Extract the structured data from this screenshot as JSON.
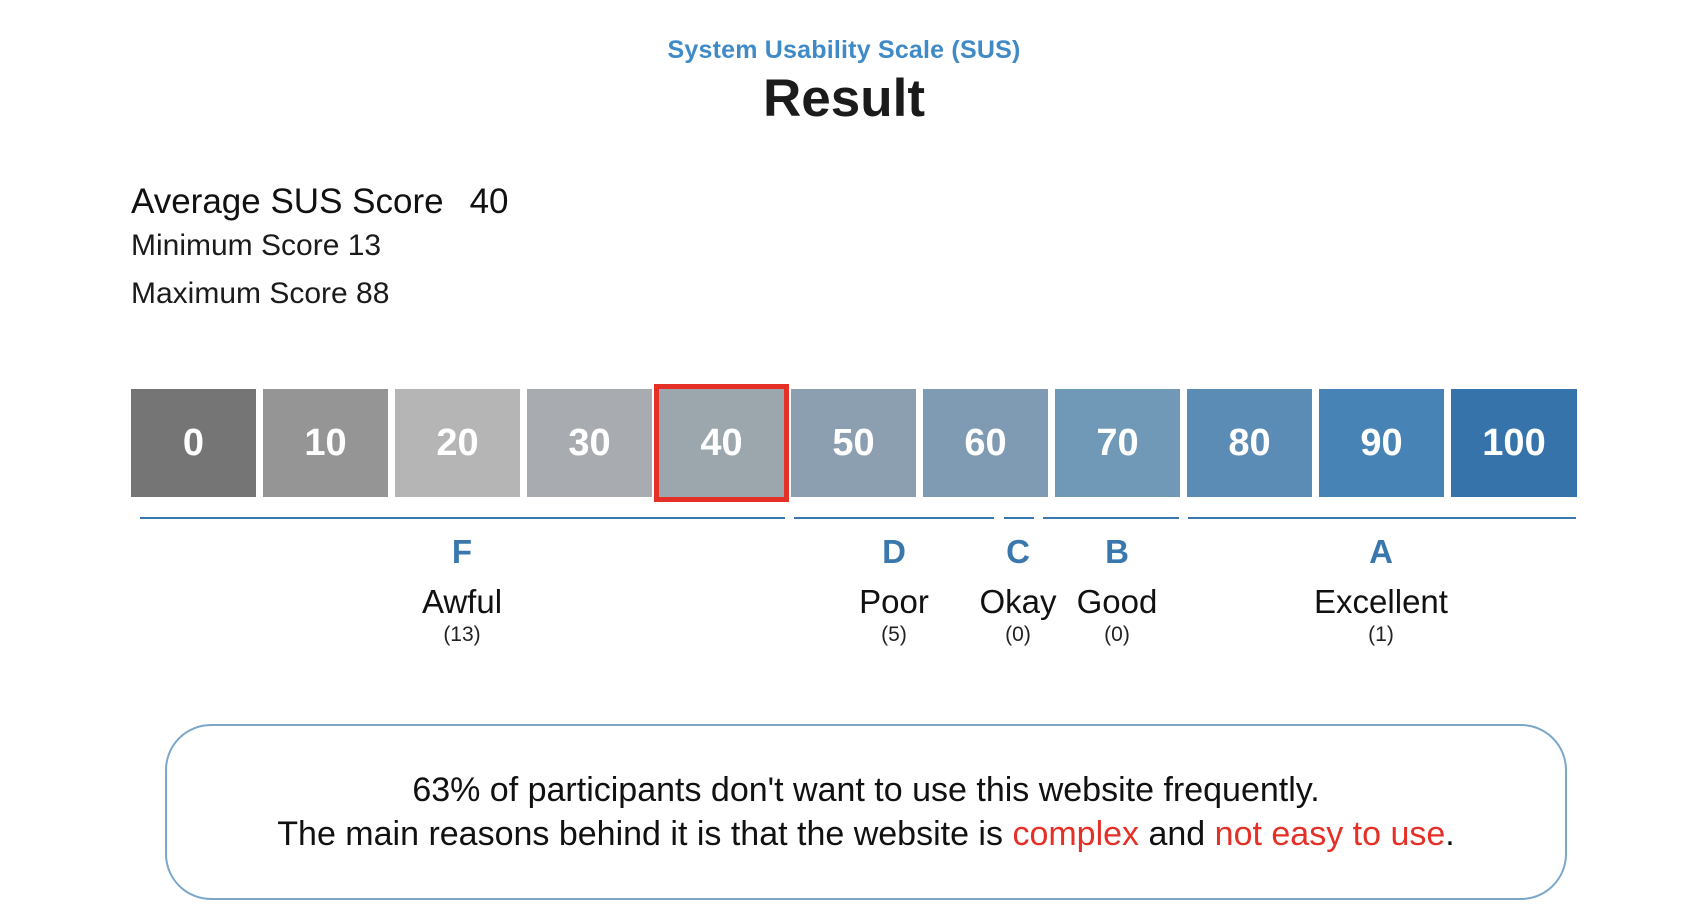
{
  "header": {
    "subtitle": "System Usability Scale (SUS)",
    "title": "Result"
  },
  "stats": {
    "average_label": "Average SUS Score",
    "average_value": "40",
    "minimum_text": "Minimum Score 13",
    "maximum_text": "Maximum Score 88"
  },
  "scale": {
    "selected_value": 40,
    "selected_color": "#e53027",
    "cells": [
      {
        "label": "0",
        "color": "#757575"
      },
      {
        "label": "10",
        "color": "#959595"
      },
      {
        "label": "20",
        "color": "#b5b5b5"
      },
      {
        "label": "30",
        "color": "#a8abb0"
      },
      {
        "label": "40",
        "color": "#9ba6ad"
      },
      {
        "label": "50",
        "color": "#8c9fb0"
      },
      {
        "label": "60",
        "color": "#7f9bb3"
      },
      {
        "label": "70",
        "color": "#7098b7"
      },
      {
        "label": "80",
        "color": "#5b8cb6"
      },
      {
        "label": "90",
        "color": "#4883b6"
      },
      {
        "label": "100",
        "color": "#3673ab"
      }
    ]
  },
  "grades": [
    {
      "letter": "F",
      "label": "Awful",
      "count": "(13)"
    },
    {
      "letter": "D",
      "label": "Poor",
      "count": "(5)"
    },
    {
      "letter": "C",
      "label": "Okay",
      "count": "(0)"
    },
    {
      "letter": "B",
      "label": "Good",
      "count": "(0)"
    },
    {
      "letter": "A",
      "label": "Excellent",
      "count": "(1)"
    }
  ],
  "message": {
    "line1": "63% of participants don't want to use this website frequently.",
    "line2_prefix": "The main reasons behind it is that the website is ",
    "highlight1": "complex",
    "connector": " and ",
    "highlight2": "not easy to use",
    "suffix": "."
  }
}
